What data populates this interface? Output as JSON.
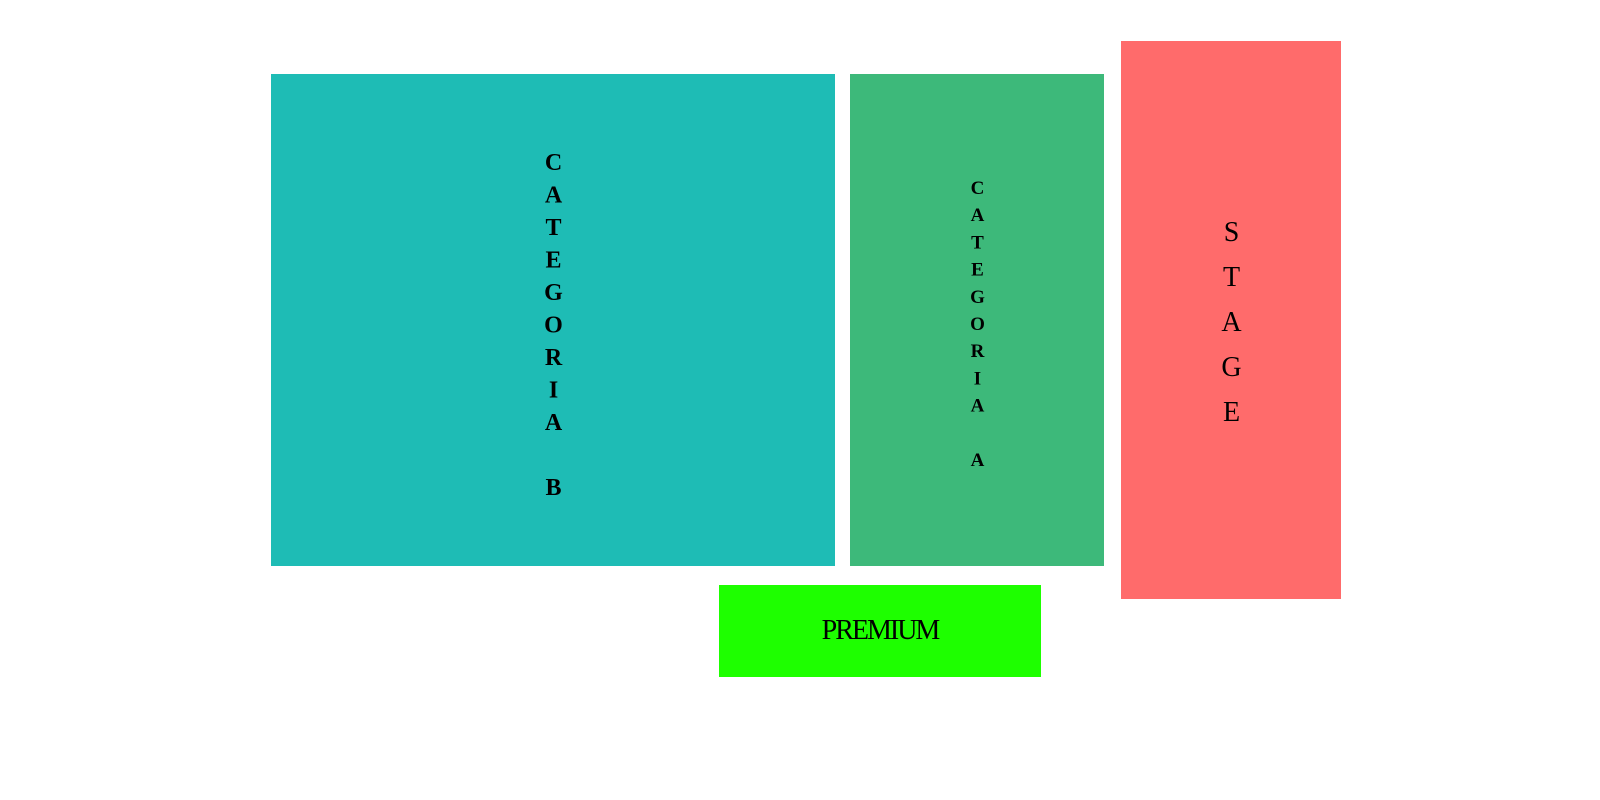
{
  "zones": {
    "category_b": {
      "label": "CATEGORIA B",
      "color": "#1EBCB5"
    },
    "category_a": {
      "label": "CATEGORIA A",
      "color": "#3DB97A"
    },
    "stage": {
      "label": "STAGE",
      "color": "#FF6B6B"
    },
    "premium": {
      "label": "PREMIUM",
      "color": "#1EFF00"
    }
  }
}
